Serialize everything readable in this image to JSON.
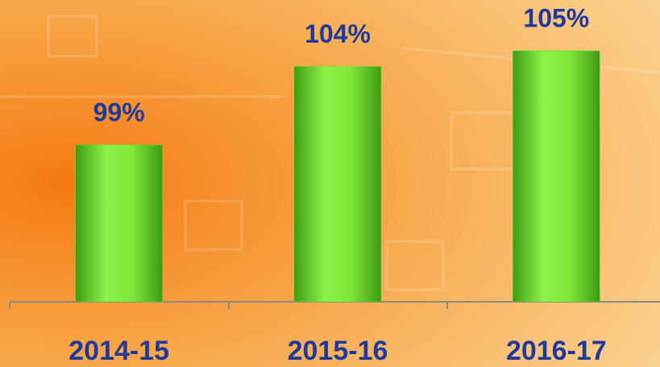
{
  "chart_data": {
    "type": "bar",
    "categories": [
      "2014-15",
      "2015-16",
      "2016-17"
    ],
    "values": [
      99,
      104,
      105
    ],
    "value_labels": [
      "99%",
      "104%",
      "105%"
    ],
    "color": "#6ee02a",
    "ylim": [
      89,
      106
    ]
  }
}
